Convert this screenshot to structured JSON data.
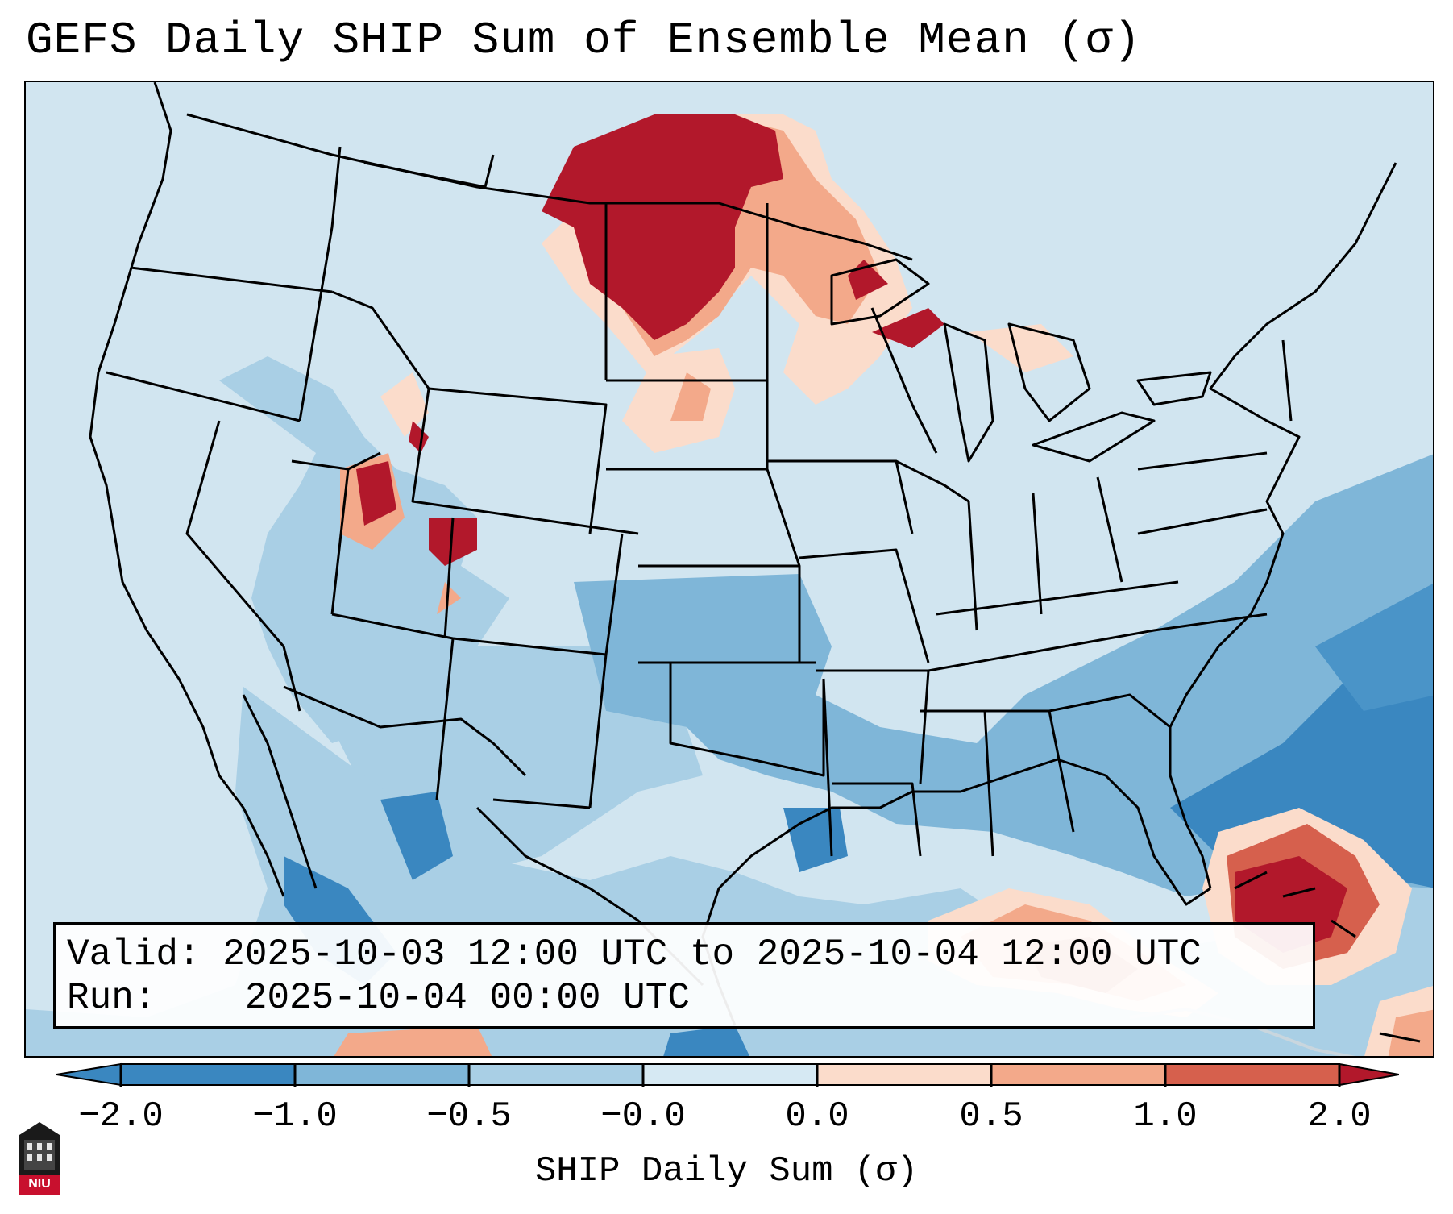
{
  "title": "GEFS Daily SHIP Sum of Ensemble Mean (σ)",
  "valid_box": {
    "valid_label": "Valid:",
    "valid_value": "2025-10-03 12:00 UTC to 2025-10-04 12:00 UTC",
    "run_label": "Run:",
    "run_value": "2025-10-04 00:00 UTC"
  },
  "colorbar": {
    "label": "SHIP Daily Sum (σ)",
    "ticks": [
      "−2.0",
      "−1.0",
      "−0.5",
      "−0.0",
      "0.0",
      "0.5",
      "1.0",
      "2.0"
    ],
    "colors": [
      "#3a87c0",
      "#7fb6d8",
      "#a9cfe5",
      "#d6e9f3",
      "#fbdccb",
      "#f3a98a",
      "#d6604d",
      "#b2182b"
    ],
    "extend": "both"
  },
  "colors": {
    "ocean": "#d1e5f0",
    "land_base": "#cfe3ef",
    "outline": "#000000"
  },
  "logo": {
    "icon": "niu-seal-icon",
    "text": "NIU"
  }
}
